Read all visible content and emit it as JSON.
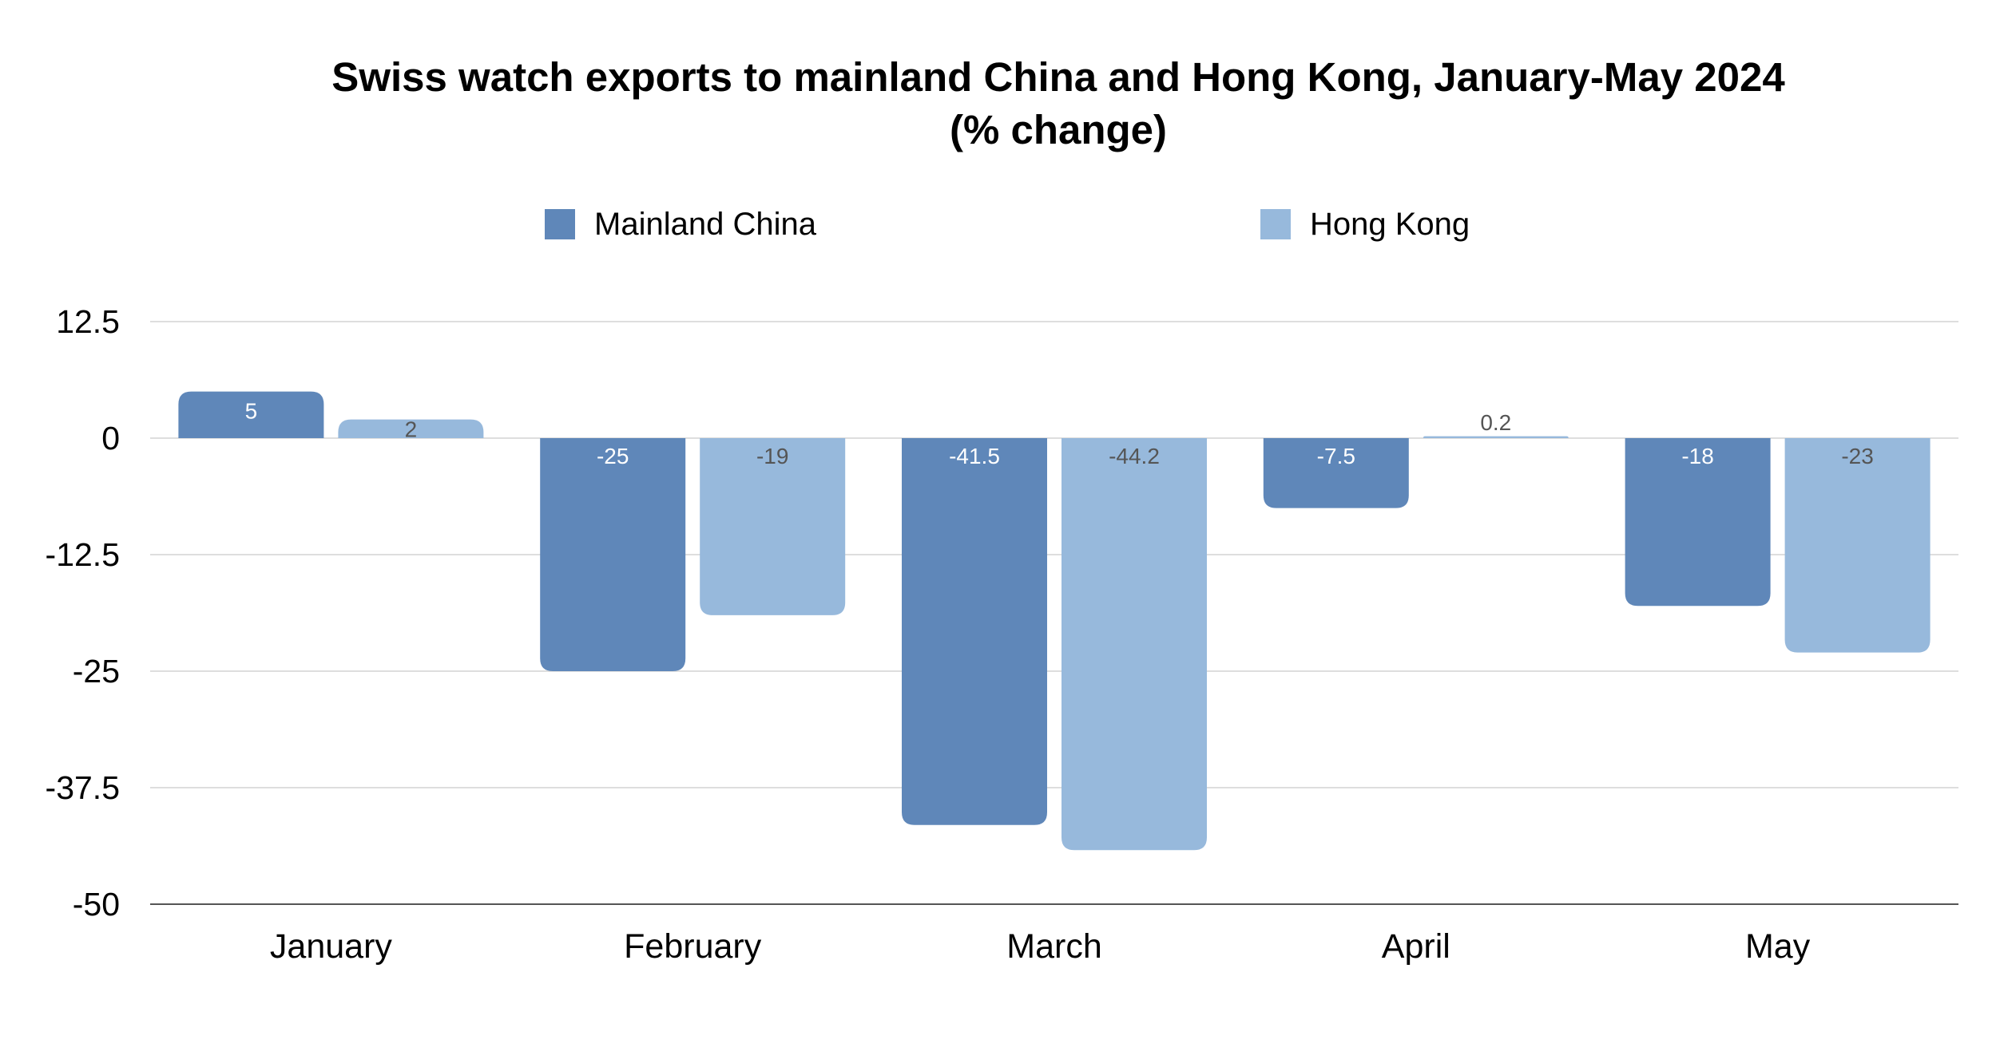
{
  "chart_data": {
    "type": "bar",
    "title_line1": "Swiss watch exports to mainland China and Hong Kong, January-May 2024",
    "title_line2": "(% change)",
    "categories": [
      "January",
      "February",
      "March",
      "April",
      "May"
    ],
    "series": [
      {
        "name": "Mainland China",
        "color": "#5f87b9",
        "label_color": "#ffffff",
        "values": [
          5,
          -25,
          -41.5,
          -7.5,
          -18
        ],
        "labels": [
          "5",
          "-25",
          "-41.5",
          "-7.5",
          "-18"
        ]
      },
      {
        "name": "Hong Kong",
        "color": "#97b9dc",
        "label_color": "#555555",
        "values": [
          2,
          -19,
          -44.2,
          0.2,
          -23
        ],
        "labels": [
          "2",
          "-19",
          "-44.2",
          "0.2",
          "-23"
        ]
      }
    ],
    "ylim": [
      -50,
      12.5
    ],
    "yticks": [
      12.5,
      0,
      -12.5,
      -25,
      -37.5,
      -50
    ],
    "ytick_labels": [
      "12.5",
      "0",
      "-12.5",
      "-25",
      "-37.5",
      "-50"
    ],
    "grid": true,
    "legend_position": "top"
  }
}
